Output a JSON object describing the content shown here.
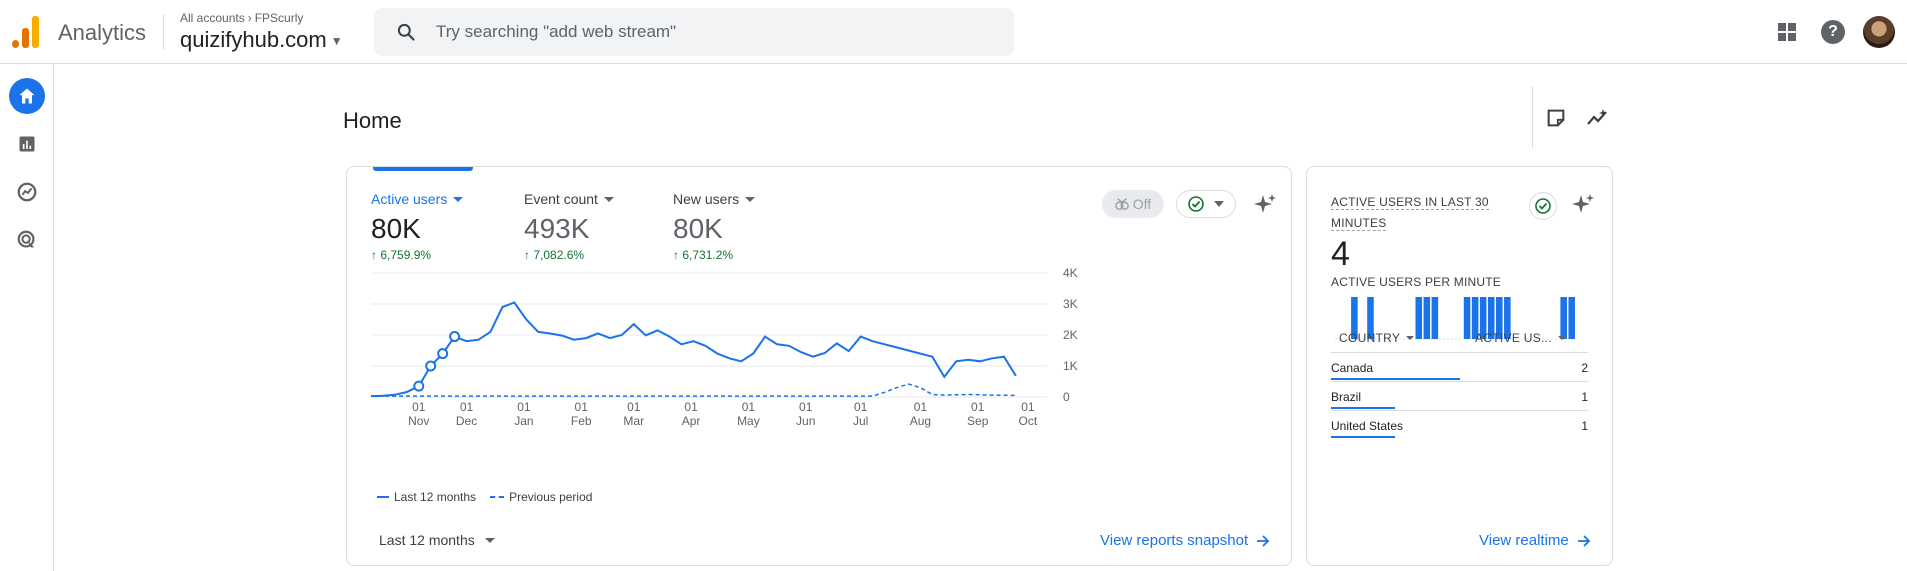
{
  "header": {
    "app_name": "Analytics",
    "breadcrumb": {
      "root": "All accounts",
      "account": "FPScurly"
    },
    "property": "quizifyhub.com",
    "search_placeholder": "Try searching \"add web stream\""
  },
  "page": {
    "title": "Home"
  },
  "overview": {
    "metrics": [
      {
        "label": "Active users",
        "value": "80K",
        "change": "6,759.9%",
        "active": true
      },
      {
        "label": "Event count",
        "value": "493K",
        "change": "7,082.6%",
        "active": false
      },
      {
        "label": "New users",
        "value": "80K",
        "change": "6,731.2%",
        "active": false
      }
    ],
    "comparison_toggle": "Off",
    "legend": {
      "current": "Last 12 months",
      "previous": "Previous period"
    },
    "date_range": "Last 12 months",
    "view_link": "View reports snapshot"
  },
  "chart_data": {
    "type": "line",
    "x_ticks": [
      {
        "day": "01",
        "month": "Nov",
        "x": 2.0
      },
      {
        "day": "01",
        "month": "Dec",
        "x": 4.0
      },
      {
        "day": "01",
        "month": "Jan",
        "x": 6.4
      },
      {
        "day": "01",
        "month": "Feb",
        "x": 8.8
      },
      {
        "day": "01",
        "month": "Mar",
        "x": 11.0
      },
      {
        "day": "01",
        "month": "Apr",
        "x": 13.4
      },
      {
        "day": "01",
        "month": "May",
        "x": 15.8
      },
      {
        "day": "01",
        "month": "Jun",
        "x": 18.2
      },
      {
        "day": "01",
        "month": "Jul",
        "x": 20.5
      },
      {
        "day": "01",
        "month": "Aug",
        "x": 23.0
      },
      {
        "day": "01",
        "month": "Sep",
        "x": 25.4
      },
      {
        "day": "01",
        "month": "Oct",
        "x": 27.5
      }
    ],
    "y_ticks": [
      "0",
      "1K",
      "2K",
      "3K",
      "4K"
    ],
    "ylim": [
      0,
      4000
    ],
    "xlim": [
      0,
      28.3
    ],
    "series": [
      {
        "name": "Last 12 months",
        "style": "solid",
        "values": [
          [
            0,
            30
          ],
          [
            0.5,
            40
          ],
          [
            1,
            70
          ],
          [
            1.5,
            160
          ],
          [
            2,
            350
          ],
          [
            2.5,
            1000
          ],
          [
            3,
            1400
          ],
          [
            3.5,
            1950
          ],
          [
            4,
            1800
          ],
          [
            4.5,
            1850
          ],
          [
            5,
            2100
          ],
          [
            5.5,
            2900
          ],
          [
            6,
            3050
          ],
          [
            6.5,
            2500
          ],
          [
            7,
            2100
          ],
          [
            7.5,
            2050
          ],
          [
            8,
            1980
          ],
          [
            8.5,
            1850
          ],
          [
            9,
            1900
          ],
          [
            9.5,
            2050
          ],
          [
            10,
            1900
          ],
          [
            10.5,
            2000
          ],
          [
            11,
            2350
          ],
          [
            11.5,
            1990
          ],
          [
            12,
            2150
          ],
          [
            12.5,
            1950
          ],
          [
            13,
            1700
          ],
          [
            13.5,
            1800
          ],
          [
            14,
            1650
          ],
          [
            14.5,
            1400
          ],
          [
            15,
            1250
          ],
          [
            15.5,
            1150
          ],
          [
            16,
            1400
          ],
          [
            16.5,
            1950
          ],
          [
            17,
            1700
          ],
          [
            17.5,
            1650
          ],
          [
            18,
            1450
          ],
          [
            18.5,
            1300
          ],
          [
            19,
            1420
          ],
          [
            19.5,
            1730
          ],
          [
            20,
            1480
          ],
          [
            20.5,
            1950
          ],
          [
            21,
            1800
          ],
          [
            21.5,
            1700
          ],
          [
            22,
            1600
          ],
          [
            22.5,
            1500
          ],
          [
            23,
            1400
          ],
          [
            23.5,
            1300
          ],
          [
            24,
            650
          ],
          [
            24.5,
            1150
          ],
          [
            25,
            1200
          ],
          [
            25.5,
            1150
          ],
          [
            26,
            1250
          ],
          [
            26.5,
            1300
          ],
          [
            27,
            680
          ]
        ],
        "markers": [
          [
            2,
            350
          ],
          [
            2.5,
            1000
          ],
          [
            3,
            1400
          ],
          [
            3.5,
            1950
          ]
        ]
      },
      {
        "name": "Previous period",
        "style": "dashed",
        "values": [
          [
            0,
            30
          ],
          [
            2,
            30
          ],
          [
            4,
            30
          ],
          [
            6,
            30
          ],
          [
            8,
            30
          ],
          [
            10,
            30
          ],
          [
            12,
            30
          ],
          [
            14,
            30
          ],
          [
            16,
            30
          ],
          [
            18,
            30
          ],
          [
            20,
            30
          ],
          [
            21,
            30
          ],
          [
            21.5,
            150
          ],
          [
            22,
            300
          ],
          [
            22.5,
            420
          ],
          [
            23,
            300
          ],
          [
            23.5,
            80
          ],
          [
            24,
            60
          ],
          [
            25,
            80
          ],
          [
            26,
            60
          ],
          [
            27,
            50
          ]
        ]
      }
    ]
  },
  "realtime": {
    "title": "ACTIVE USERS IN LAST 30 MINUTES",
    "value": "4",
    "subtitle": "ACTIVE USERS PER MINUTE",
    "per_minute": [
      0,
      0,
      1,
      0,
      1,
      0,
      0,
      0,
      0,
      0,
      1,
      1,
      1,
      0,
      0,
      0,
      1,
      1,
      1,
      1,
      1,
      1,
      0,
      0,
      0,
      0,
      0,
      0,
      1,
      1
    ],
    "col_country": "COUNTRY",
    "col_users": "ACTIVE US...",
    "rows": [
      {
        "country": "Canada",
        "users": "2",
        "share": 0.5
      },
      {
        "country": "Brazil",
        "users": "1",
        "share": 0.25
      },
      {
        "country": "United States",
        "users": "1",
        "share": 0.25
      }
    ],
    "view_link": "View realtime"
  },
  "colors": {
    "accent": "#1a73e8",
    "positive": "#137333"
  }
}
